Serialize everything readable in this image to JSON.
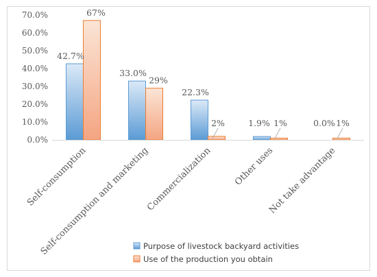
{
  "chart_data": {
    "type": "bar",
    "categories": [
      "Self-consumption",
      "Self-consumption and marketing",
      "Commercialization",
      "Other uses",
      "Not take advantage"
    ],
    "series": [
      {
        "name": "Purpose of livestock backyard activities",
        "values": [
          42.7,
          33.0,
          22.3,
          1.9,
          0.0
        ],
        "labels": [
          "42.7%",
          "33.0%",
          "22.3%",
          "1.9%",
          "0.0%"
        ],
        "color": "#9dc3e6",
        "border": "#5b9bd5"
      },
      {
        "name": "Use of the production you obtain",
        "values": [
          67,
          29,
          2,
          1,
          1
        ],
        "labels": [
          "67%",
          "29%",
          "2%",
          "1%",
          "1%"
        ],
        "color": "#f8cbad",
        "border": "#ed7d31"
      }
    ],
    "yticks": [
      "0.0%",
      "10.0%",
      "20.0%",
      "30.0%",
      "40.0%",
      "50.0%",
      "60.0%",
      "70.0%"
    ],
    "ylim": [
      0,
      70
    ],
    "grid": false,
    "legend": "bottom-right"
  }
}
